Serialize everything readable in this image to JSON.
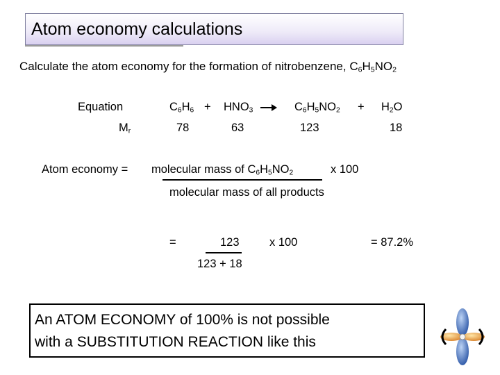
{
  "title": "Atom economy calculations",
  "question": {
    "prefix": "Calculate the atom economy for the formation of nitrobenzene, C",
    "s1": "6",
    "m1": "H",
    "s2": "5",
    "suffix": "NO",
    "s3": "2"
  },
  "equation": {
    "label": "Equation",
    "reactant1": {
      "a": "C",
      "a_sub": "6",
      "b": "H",
      "b_sub": "6"
    },
    "plus1": "+",
    "reactant2": {
      "a": "HNO",
      "a_sub": "3"
    },
    "product1": {
      "a": "C",
      "a_sub": "6",
      "b": "H",
      "b_sub": "5",
      "c": "NO",
      "c_sub": "2"
    },
    "plus2": "+",
    "product2": {
      "a": "H",
      "a_sub": "2",
      "b": "O"
    }
  },
  "mr": {
    "label": "M",
    "label_sub": "r",
    "values": [
      "78",
      "63",
      "123",
      "18"
    ]
  },
  "formula": {
    "lhs": "Atom economy  =",
    "numerator_prefix": "molecular mass of  C",
    "n_s1": "6",
    "n_m": "H",
    "n_s2": "5",
    "n_suffix": "NO",
    "n_s3": "2",
    "times": "x  100",
    "denominator": "molecular mass of all products"
  },
  "calc": {
    "equals": "=",
    "numerator": "123",
    "denominator": "123  +  18",
    "times": "x  100",
    "result": "=   87.2%"
  },
  "note": {
    "line1": "An ATOM ECONOMY of 100% is not possible",
    "line2": "with a SUBSTITUTION REACTION like this"
  },
  "icon": "p-orbital-icon"
}
